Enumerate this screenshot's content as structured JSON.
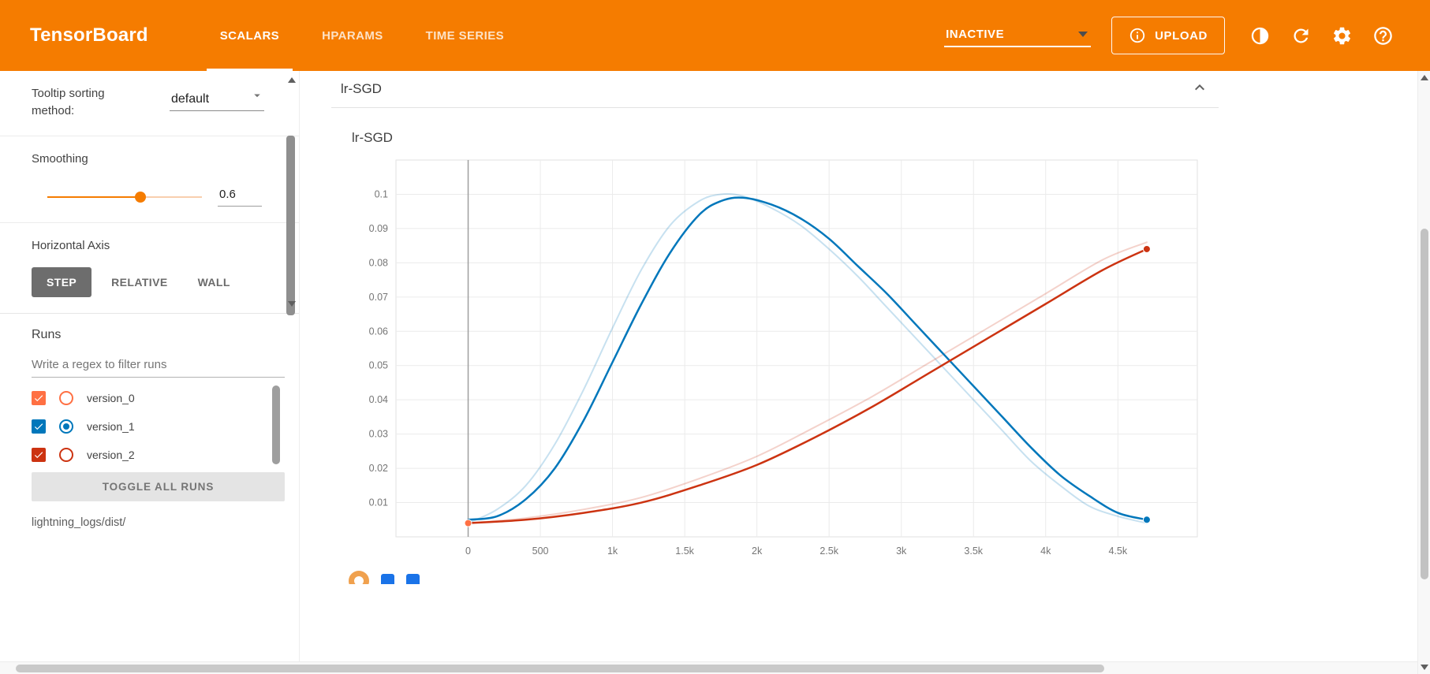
{
  "header": {
    "logo": "TensorBoard",
    "tabs": [
      {
        "label": "SCALARS",
        "active": true
      },
      {
        "label": "HPARAMS",
        "active": false
      },
      {
        "label": "TIME SERIES",
        "active": false
      }
    ],
    "status": "INACTIVE",
    "upload_label": "UPLOAD",
    "colors": {
      "bar": "#f57c00"
    }
  },
  "sidebar": {
    "tooltip_sorting": {
      "label": "Tooltip sorting method:",
      "value": "default"
    },
    "smoothing": {
      "label": "Smoothing",
      "value": "0.6",
      "percent": 60
    },
    "horizontal_axis": {
      "label": "Horizontal Axis",
      "options": [
        {
          "label": "STEP",
          "active": true
        },
        {
          "label": "RELATIVE",
          "active": false
        },
        {
          "label": "WALL",
          "active": false
        }
      ]
    },
    "runs": {
      "label": "Runs",
      "filter_placeholder": "Write a regex to filter runs",
      "items": [
        {
          "name": "version_0",
          "color": "#ff7043",
          "checked": true,
          "radio_selected": false
        },
        {
          "name": "version_1",
          "color": "#0077bb",
          "checked": true,
          "radio_selected": true
        },
        {
          "name": "version_2",
          "color": "#cc3311",
          "checked": true,
          "radio_selected": false
        }
      ],
      "toggle_all_label": "TOGGLE ALL RUNS",
      "log_dir": "lightning_logs/dist/"
    }
  },
  "main": {
    "group_title": "lr-SGD",
    "chart_title": "lr-SGD"
  },
  "icons": {
    "header": [
      "brightness-toggle-icon",
      "refresh-icon",
      "settings-gear-icon",
      "help-icon"
    ],
    "upload_button": "info-icon",
    "group_header": "chevron-up-icon"
  },
  "chart_data": {
    "type": "line",
    "title": "lr-SGD",
    "xlabel": "",
    "ylabel": "",
    "xlim": [
      -500,
      5050
    ],
    "ylim": [
      0,
      0.11
    ],
    "x_ticks": [
      0,
      500,
      1000,
      1500,
      2000,
      2500,
      3000,
      3500,
      4000,
      4500
    ],
    "x_tick_labels": [
      "0",
      "500",
      "1k",
      "1.5k",
      "2k",
      "2.5k",
      "3k",
      "3.5k",
      "4k",
      "4.5k"
    ],
    "y_ticks": [
      0.01,
      0.02,
      0.03,
      0.04,
      0.05,
      0.06,
      0.07,
      0.08,
      0.09,
      0.1
    ],
    "y_tick_labels": [
      "0.01",
      "0.02",
      "0.03",
      "0.04",
      "0.05",
      "0.06",
      "0.07",
      "0.08",
      "0.09",
      "0.1"
    ],
    "grid": true,
    "legend": "none",
    "zero_line_x": 0,
    "smoothing_applied": 0.6,
    "series": [
      {
        "name": "version_1",
        "role": "raw",
        "color": "#0077bb",
        "opacity": 0.22,
        "width": 2,
        "x": [
          0,
          200,
          400,
          600,
          800,
          1000,
          1200,
          1400,
          1600,
          1750,
          1900,
          2100,
          2300,
          2500,
          2700,
          2900,
          3100,
          3300,
          3500,
          3700,
          3900,
          4100,
          4300,
          4500,
          4700
        ],
        "y": [
          0.004,
          0.008,
          0.015,
          0.027,
          0.043,
          0.061,
          0.078,
          0.091,
          0.098,
          0.1,
          0.0995,
          0.096,
          0.091,
          0.084,
          0.076,
          0.067,
          0.058,
          0.049,
          0.04,
          0.031,
          0.022,
          0.015,
          0.009,
          0.006,
          0.004
        ]
      },
      {
        "name": "version_2",
        "role": "raw",
        "color": "#cc3311",
        "opacity": 0.22,
        "width": 2,
        "x": [
          0,
          400,
          800,
          1200,
          1600,
          2000,
          2400,
          2800,
          3200,
          3600,
          4000,
          4400,
          4700
        ],
        "y": [
          0.004,
          0.0055,
          0.008,
          0.0115,
          0.017,
          0.0235,
          0.032,
          0.041,
          0.051,
          0.061,
          0.071,
          0.081,
          0.086
        ]
      },
      {
        "name": "version_1",
        "role": "smoothed",
        "color": "#0077bb",
        "opacity": 1,
        "width": 2.5,
        "x": [
          0,
          200,
          400,
          600,
          800,
          1000,
          1200,
          1400,
          1600,
          1750,
          1900,
          2100,
          2300,
          2500,
          2700,
          2900,
          3100,
          3300,
          3500,
          3700,
          3900,
          4100,
          4300,
          4500,
          4700
        ],
        "y": [
          0.005,
          0.006,
          0.011,
          0.02,
          0.034,
          0.051,
          0.068,
          0.083,
          0.094,
          0.098,
          0.099,
          0.097,
          0.093,
          0.087,
          0.079,
          0.071,
          0.062,
          0.053,
          0.044,
          0.035,
          0.026,
          0.018,
          0.012,
          0.007,
          0.005
        ]
      },
      {
        "name": "version_2",
        "role": "smoothed",
        "color": "#cc3311",
        "opacity": 1,
        "width": 2.5,
        "x": [
          0,
          400,
          800,
          1200,
          1600,
          2000,
          2400,
          2800,
          3200,
          3600,
          4000,
          4400,
          4700
        ],
        "y": [
          0.004,
          0.005,
          0.007,
          0.01,
          0.015,
          0.021,
          0.029,
          0.038,
          0.048,
          0.058,
          0.068,
          0.078,
          0.084
        ]
      },
      {
        "name": "version_0",
        "role": "smoothed",
        "color": "#ff7043",
        "opacity": 1,
        "width": 2.5,
        "x": [
          0
        ],
        "y": [
          0.004
        ]
      }
    ],
    "markers": [
      {
        "x": 0,
        "y": 0.004,
        "color": "#ff7043"
      },
      {
        "x": 4700,
        "y": 0.084,
        "color": "#cc3311"
      },
      {
        "x": 4700,
        "y": 0.005,
        "color": "#0077bb"
      }
    ]
  }
}
